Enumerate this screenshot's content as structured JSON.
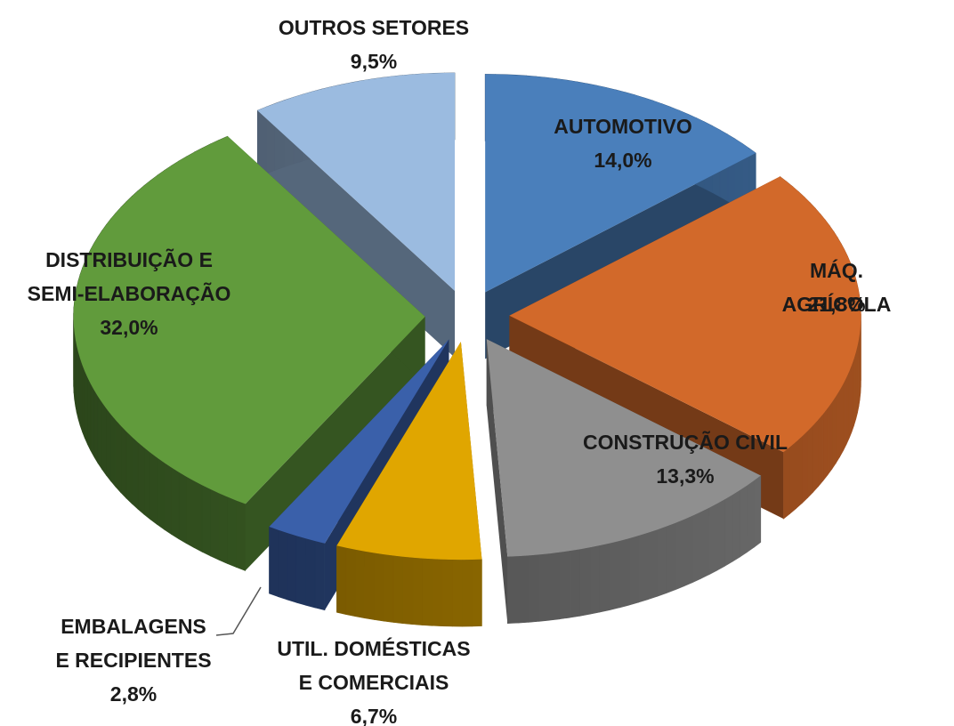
{
  "chart_data": {
    "type": "pie3d",
    "categories": [
      "AUTOMOTIVO",
      "MÁQ. AGRÍCOLA",
      "CONSTRUÇÃO CIVIL",
      "UTIL. DOMÉSTICAS\nE COMERCIAIS",
      "EMBALAGENS\nE RECIPIENTES",
      "DISTRIBUIÇÃO E\nSEMI-ELABORAÇÃO",
      "OUTROS SETORES"
    ],
    "values": [
      14.0,
      21.8,
      13.3,
      6.7,
      2.8,
      32.0,
      9.5
    ],
    "value_labels": [
      "14,0%",
      "21,8%",
      "13,3%",
      "6,7%",
      "2,8%",
      "32,0%",
      "9,5%"
    ],
    "colors": [
      "#4a7fbb",
      "#d2692a",
      "#8f8f8f",
      "#e0a600",
      "#3a60aa",
      "#619b3c",
      "#9bbbe0"
    ]
  }
}
